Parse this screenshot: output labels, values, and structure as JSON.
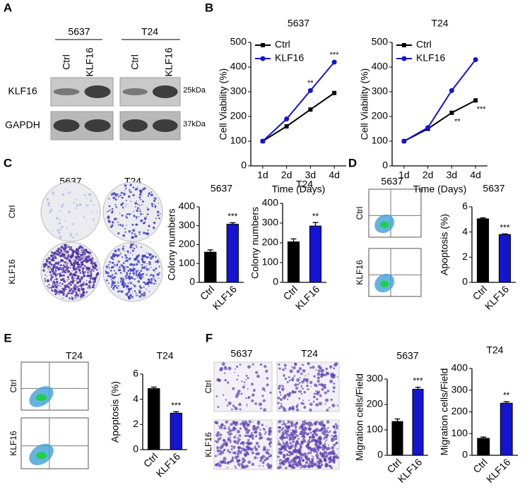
{
  "chart_data": [
    {
      "type": "line",
      "title": "5637",
      "categories": [
        "1d",
        "2d",
        "3d",
        "4d"
      ],
      "series": [
        {
          "name": "Ctrl",
          "color": "#000000",
          "marker": "square",
          "values": [
            100,
            160,
            228,
            295
          ]
        },
        {
          "name": "KLF16",
          "color": "#1414d2",
          "marker": "circle",
          "values": [
            100,
            190,
            305,
            420
          ]
        }
      ],
      "xlabel": "Time (Days)",
      "ylabel": "Cell Viability (%)",
      "ylim": [
        0,
        500
      ],
      "yticks": [
        0,
        100,
        200,
        300,
        400,
        500
      ],
      "legend": "upper left",
      "annotations": [
        {
          "text": "**",
          "category": "3d",
          "series": "KLF16"
        },
        {
          "text": "***",
          "category": "4d",
          "series": "KLF16"
        }
      ]
    },
    {
      "type": "line",
      "title": "T24",
      "categories": [
        "1d",
        "2d",
        "3d",
        "4d"
      ],
      "series": [
        {
          "name": "Ctrl",
          "color": "#000000",
          "marker": "square",
          "values": [
            100,
            150,
            215,
            265
          ]
        },
        {
          "name": "KLF16",
          "color": "#1414d2",
          "marker": "circle",
          "values": [
            100,
            155,
            305,
            430
          ]
        }
      ],
      "xlabel": "Time (Days)",
      "ylabel": "Cell Viability (%)",
      "ylim": [
        0,
        500
      ],
      "yticks": [
        0,
        100,
        200,
        300,
        400,
        500
      ],
      "legend": "upper left",
      "annotations": [
        {
          "text": "**",
          "category": "3d",
          "series": "Ctrl"
        },
        {
          "text": "***",
          "category": "4d",
          "series": "Ctrl"
        }
      ]
    },
    {
      "type": "bar",
      "title": "5637",
      "categories": [
        "Ctrl",
        "KLF16"
      ],
      "values": [
        160,
        308
      ],
      "errors": [
        12,
        8
      ],
      "colors": [
        "#000000",
        "#1414d2"
      ],
      "ylabel": "Colony numbers",
      "ylim": [
        0,
        400
      ],
      "yticks": [
        0,
        100,
        200,
        300,
        400
      ],
      "annotations": [
        {
          "text": "***",
          "category": "KLF16"
        }
      ]
    },
    {
      "type": "bar",
      "title": "T24",
      "categories": [
        "Ctrl",
        "KLF16"
      ],
      "values": [
        205,
        285
      ],
      "errors": [
        15,
        18
      ],
      "colors": [
        "#000000",
        "#1414d2"
      ],
      "ylabel": "Colony numbers",
      "ylim": [
        0,
        400
      ],
      "yticks": [
        0,
        100,
        200,
        300,
        400
      ],
      "annotations": [
        {
          "text": "**",
          "category": "KLF16"
        }
      ]
    },
    {
      "type": "bar",
      "title": "5637",
      "categories": [
        "Ctrl",
        "KLF16"
      ],
      "values": [
        5.05,
        3.8
      ],
      "errors": [
        0.08,
        0.05
      ],
      "colors": [
        "#000000",
        "#1414d2"
      ],
      "ylabel": "Apoptosis (%)",
      "ylim": [
        0,
        6
      ],
      "yticks": [
        0,
        2,
        4,
        6
      ],
      "annotations": [
        {
          "text": "***",
          "category": "KLF16"
        }
      ]
    },
    {
      "type": "bar",
      "title": "T24",
      "categories": [
        "Ctrl",
        "KLF16"
      ],
      "values": [
        4.85,
        2.9
      ],
      "errors": [
        0.12,
        0.12
      ],
      "colors": [
        "#000000",
        "#1414d2"
      ],
      "ylabel": "Apoptosis (%)",
      "ylim": [
        0,
        6
      ],
      "yticks": [
        0,
        2,
        4,
        6
      ],
      "annotations": [
        {
          "text": "***",
          "category": "KLF16"
        }
      ]
    },
    {
      "type": "bar",
      "title": "5637",
      "categories": [
        "Ctrl",
        "KLF16"
      ],
      "values": [
        133,
        260
      ],
      "errors": [
        10,
        8
      ],
      "colors": [
        "#000000",
        "#1414d2"
      ],
      "ylabel": "Migration cells/Field",
      "ylim": [
        0,
        300
      ],
      "yticks": [
        0,
        100,
        200,
        300
      ],
      "annotations": [
        {
          "text": "***",
          "category": "KLF16"
        }
      ]
    },
    {
      "type": "bar",
      "title": "T24",
      "categories": [
        "Ctrl",
        "KLF16"
      ],
      "values": [
        78,
        240
      ],
      "errors": [
        6,
        7
      ],
      "colors": [
        "#000000",
        "#1414d2"
      ],
      "ylabel": "Migration cells/Field",
      "ylim": [
        0,
        400
      ],
      "yticks": [
        0,
        100,
        200,
        300,
        400
      ],
      "annotations": [
        {
          "text": "**",
          "category": "KLF16"
        }
      ]
    }
  ],
  "figure": {
    "panel_labels": [
      "A",
      "B",
      "C",
      "D",
      "E",
      "F"
    ],
    "blot": {
      "groups": [
        "5637",
        "T24"
      ],
      "lanes": [
        "Ctrl",
        "KLF16",
        "Ctrl",
        "KLF16"
      ],
      "rows": [
        "KLF16",
        "GAPDH"
      ],
      "sizes": [
        "25kDa",
        "37kDa"
      ]
    },
    "colony": {
      "columns": [
        "5637",
        "T24"
      ],
      "rows": [
        "Ctrl",
        "KLF16"
      ]
    },
    "flow_5637": {
      "title": "5637",
      "rows": [
        "Ctrl",
        "KLF16"
      ]
    },
    "flow_t24": {
      "title": "T24",
      "rows": [
        "Ctrl",
        "KLF16"
      ]
    },
    "migration": {
      "columns": [
        "5637",
        "T24"
      ],
      "rows": [
        "Ctrl",
        "KLF16"
      ]
    }
  }
}
